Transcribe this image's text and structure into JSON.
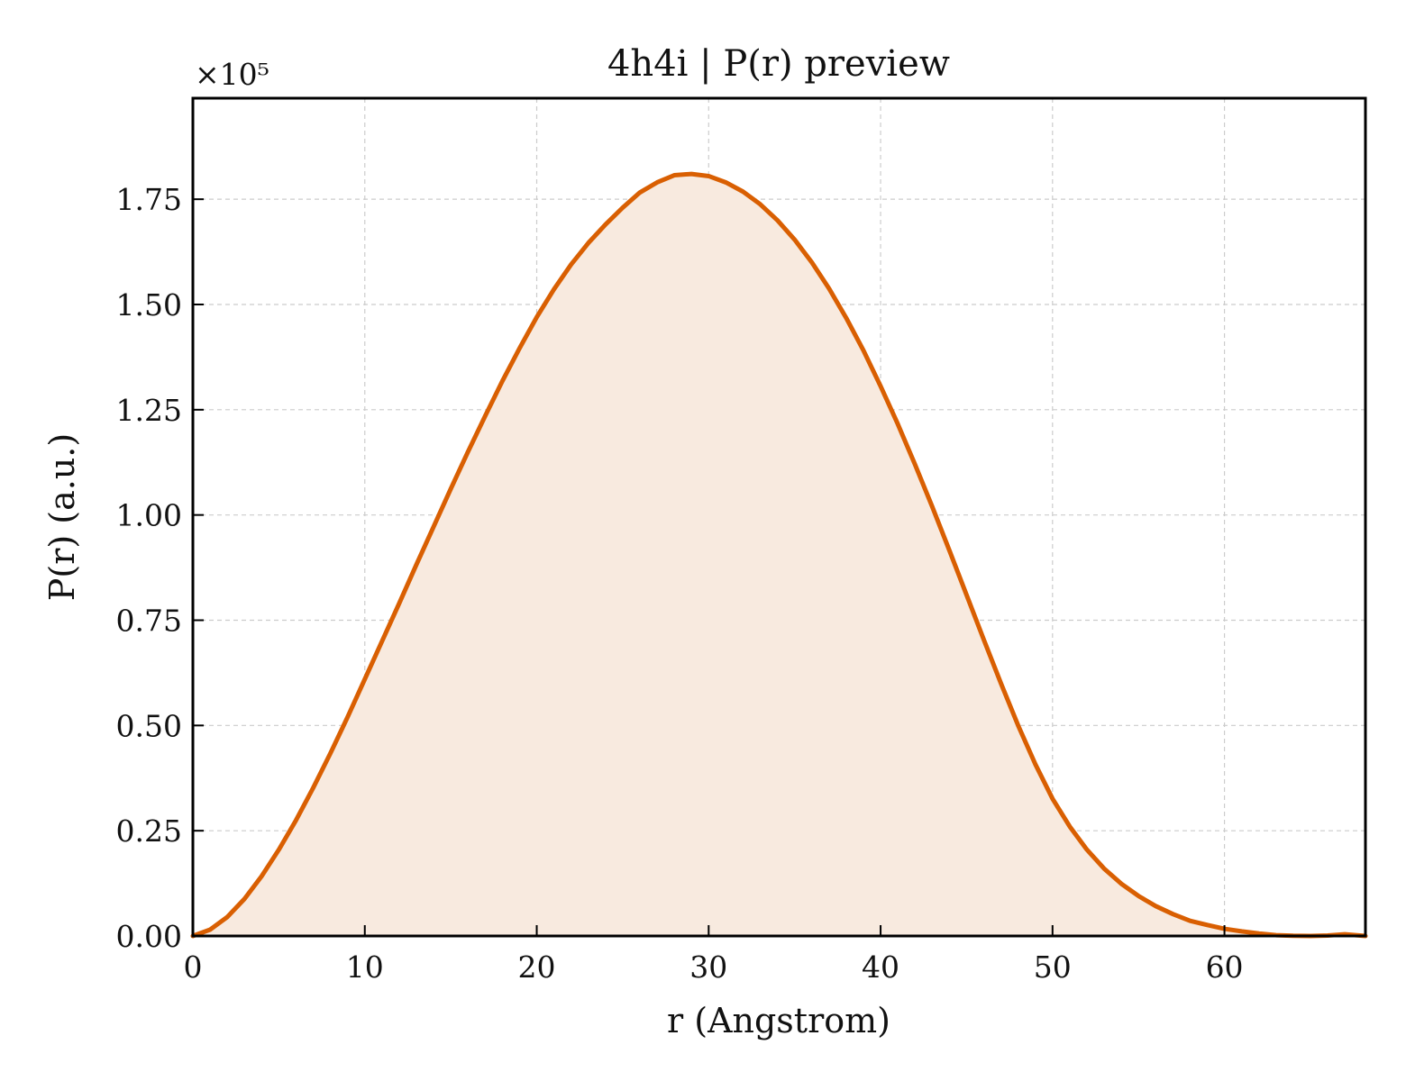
{
  "chart_data": {
    "type": "area",
    "title": "4h4i | P(r) preview",
    "xlabel": "r (Angstrom)",
    "ylabel": "P(r) (a.u.)",
    "y_multiplier_label": "×10⁵",
    "xlim": [
      0,
      68.2
    ],
    "ylim": [
      0,
      1.99
    ],
    "x_ticks": [
      0,
      10,
      20,
      30,
      40,
      50,
      60
    ],
    "x_tick_labels": [
      "0",
      "10",
      "20",
      "30",
      "40",
      "50",
      "60"
    ],
    "y_ticks": [
      0,
      0.25,
      0.5,
      0.75,
      1.0,
      1.25,
      1.5,
      1.75
    ],
    "y_tick_labels": [
      "0.00",
      "0.25",
      "0.50",
      "0.75",
      "1.00",
      "1.25",
      "1.50",
      "1.75"
    ],
    "grid": true,
    "line_color": "#d95f02",
    "fill_color": "#f8eadf",
    "series": [
      {
        "x": [
          0,
          1,
          2,
          3,
          4,
          5,
          6,
          7,
          8,
          9,
          10,
          11,
          12,
          13,
          14,
          15,
          16,
          17,
          18,
          19,
          20,
          21,
          22,
          23,
          24,
          25,
          26,
          27,
          28,
          29,
          30,
          31,
          32,
          33,
          34,
          35,
          36,
          37,
          38,
          39,
          40,
          41,
          42,
          43,
          44,
          45,
          46,
          47,
          48,
          49,
          50,
          51,
          52,
          53,
          54,
          55,
          56,
          57,
          58,
          59,
          60,
          61,
          62,
          63,
          64,
          65,
          66,
          67,
          68.2
        ],
        "values": [
          0.0,
          0.015,
          0.045,
          0.088,
          0.142,
          0.205,
          0.275,
          0.352,
          0.434,
          0.52,
          0.61,
          0.7,
          0.79,
          0.882,
          0.972,
          1.062,
          1.15,
          1.235,
          1.318,
          1.396,
          1.47,
          1.536,
          1.595,
          1.646,
          1.69,
          1.73,
          1.766,
          1.79,
          1.807,
          1.81,
          1.805,
          1.79,
          1.768,
          1.738,
          1.7,
          1.654,
          1.6,
          1.538,
          1.468,
          1.391,
          1.306,
          1.216,
          1.12,
          1.02,
          0.916,
          0.81,
          0.704,
          0.6,
          0.5,
          0.408,
          0.326,
          0.26,
          0.205,
          0.16,
          0.124,
          0.095,
          0.071,
          0.052,
          0.036,
          0.026,
          0.017,
          0.011,
          0.006,
          0.002,
          0.0005,
          0.0,
          0.001,
          0.004,
          0.0
        ]
      }
    ]
  }
}
